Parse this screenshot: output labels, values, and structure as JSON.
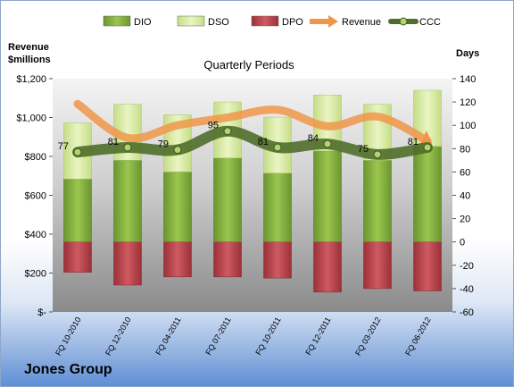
{
  "chart_data": {
    "type": "bar",
    "title": "Quarterly Periods",
    "left_axis_title": [
      "Revenue",
      "$millions"
    ],
    "right_axis_title": "Days",
    "categories": [
      "FQ 10-2010",
      "FQ 12-2010",
      "FQ 04-2011",
      "FQ 07-2011",
      "FQ 10-2011",
      "FQ 12-2011",
      "FQ 03-2012",
      "FQ 06-2012"
    ],
    "left_axis": {
      "ylim": [
        0,
        1200
      ],
      "ticks": [
        "$-",
        "$200",
        "$400",
        "$600",
        "$800",
        "$1,000",
        "$1,200"
      ]
    },
    "right_axis": {
      "ylim": [
        -60,
        140
      ],
      "ticks": [
        "-60",
        "-40",
        "-20",
        "0",
        "20",
        "40",
        "60",
        "80",
        "100",
        "120",
        "140"
      ]
    },
    "series": [
      {
        "name": "DIO",
        "type": "bar",
        "axis": "right",
        "values": [
          54,
          70,
          60,
          72,
          59,
          78,
          70,
          82
        ],
        "color": "#7fae3a"
      },
      {
        "name": "DSO",
        "type": "bar",
        "axis": "right",
        "values": [
          48,
          48,
          49,
          48,
          48,
          48,
          48,
          48
        ],
        "color": "#d6ea9e"
      },
      {
        "name": "DPO",
        "type": "bar",
        "axis": "right",
        "values": [
          -26,
          -37,
          -30,
          -30,
          -31,
          -43,
          -40,
          -42
        ],
        "color": "#b8444c"
      },
      {
        "name": "Revenue",
        "type": "line",
        "axis": "left",
        "values": [
          1070,
          895,
          960,
          1000,
          1040,
          955,
          1005,
          880
        ],
        "color": "#f0964a"
      },
      {
        "name": "CCC",
        "type": "line",
        "axis": "right",
        "values": [
          77,
          81,
          79,
          95,
          81,
          84,
          75,
          81
        ],
        "labels": [
          "77",
          "81",
          "79",
          "95",
          "81",
          "84",
          "75",
          "81"
        ],
        "color": "#5e7f34"
      }
    ],
    "legend": [
      "DIO",
      "DSO",
      "DPO",
      "Revenue",
      "CCC"
    ],
    "legend_position": "top",
    "grid": false
  },
  "company": "Jones Group"
}
